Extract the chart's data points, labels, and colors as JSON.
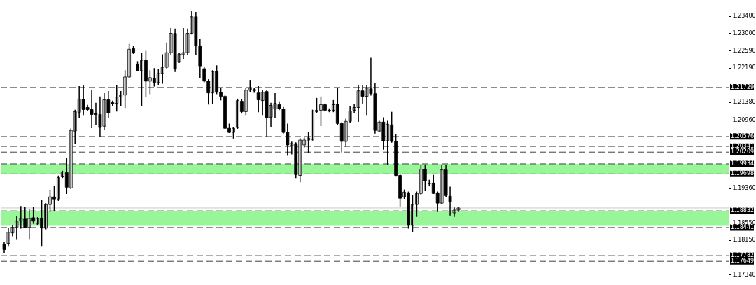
{
  "chart_data": {
    "type": "candlestick",
    "categories": [
      null,
      null,
      null,
      null,
      null,
      null,
      null,
      null,
      null,
      null,
      null,
      null,
      null,
      null,
      null,
      null,
      null,
      null,
      null,
      null,
      null,
      null,
      null,
      null,
      null,
      null,
      null,
      null,
      null,
      null,
      null,
      null,
      null,
      null,
      null,
      null,
      null,
      null,
      null,
      null,
      null,
      null,
      null,
      null,
      null,
      null,
      null,
      null,
      null,
      null,
      null,
      null,
      null,
      null,
      null,
      null,
      null,
      null,
      null,
      null,
      null,
      null,
      null,
      null,
      null,
      null,
      null,
      null,
      null,
      null,
      null,
      null,
      null,
      null,
      null,
      null,
      null,
      null,
      null,
      null,
      null,
      null,
      null,
      null,
      null,
      null,
      null,
      null,
      null,
      null,
      null,
      null,
      null,
      null,
      null,
      null,
      null,
      null,
      null,
      null,
      null,
      null,
      null,
      null,
      null,
      null,
      null,
      null,
      null,
      null,
      null,
      null,
      null,
      null,
      null,
      null,
      null,
      null,
      null,
      null,
      null,
      null,
      null,
      null,
      null,
      null,
      null,
      null,
      null,
      null,
      null,
      null,
      null,
      null,
      null,
      null,
      null,
      null,
      null,
      null,
      null,
      null,
      null,
      null,
      null,
      null,
      null,
      null,
      null,
      null,
      null,
      null,
      null,
      null,
      null,
      null,
      null,
      null,
      null,
      null,
      null,
      null,
      null,
      null,
      null,
      null,
      null,
      null,
      null,
      null,
      null,
      null,
      null,
      null
    ],
    "ohlc": [
      [
        1.18054,
        1.18086,
        1.17859,
        1.17924
      ],
      [
        1.1807,
        1.18411,
        1.18005,
        1.1833
      ],
      [
        1.18314,
        1.18492,
        1.18249,
        1.18444
      ],
      [
        1.18444,
        1.18704,
        1.18167,
        1.1859
      ],
      [
        1.1859,
        1.18931,
        1.18427,
        1.18655
      ],
      [
        1.18639,
        1.18915,
        1.18444,
        1.18444
      ],
      [
        1.18444,
        1.18866,
        1.18167,
        1.18655
      ],
      [
        1.18671,
        1.18915,
        1.18541,
        1.1859
      ],
      [
        1.18525,
        1.18671,
        1.18509,
        1.18655
      ],
      [
        1.18655,
        1.19077,
        1.18005,
        1.18427
      ],
      [
        1.18427,
        1.18996,
        1.18411,
        1.1898
      ],
      [
        1.1898,
        1.19305,
        1.18817,
        1.19159
      ],
      [
        1.19159,
        1.19402,
        1.18834,
        1.1911
      ],
      [
        1.1911,
        1.19646,
        1.19077,
        1.19614
      ],
      [
        1.1963,
        1.1976,
        1.19614,
        1.19744
      ],
      [
        1.19727,
        1.20052,
        1.1924,
        1.19386
      ],
      [
        1.1937,
        1.20751,
        1.19354,
        1.20719
      ],
      [
        1.20702,
        1.2119,
        1.2041,
        1.21157
      ],
      [
        1.21141,
        1.21742,
        1.21027,
        1.2145
      ],
      [
        1.2145,
        1.21759,
        1.21092,
        1.21206
      ],
      [
        1.21255,
        1.21304,
        1.2119,
        1.21206
      ],
      [
        1.21206,
        1.21661,
        1.20784,
        1.21092
      ],
      [
        1.21109,
        1.21352,
        1.20865,
        1.21092
      ],
      [
        1.21092,
        1.21499,
        1.20572,
        1.20784
      ],
      [
        1.20816,
        1.2158,
        1.20735,
        1.21434
      ],
      [
        1.21434,
        1.21629,
        1.21027,
        1.21125
      ],
      [
        1.21369,
        1.21401,
        1.21304,
        1.21336
      ],
      [
        1.21352,
        1.21759,
        1.21174,
        1.21499
      ],
      [
        1.21499,
        1.21629,
        1.21304,
        1.21547
      ],
      [
        1.21547,
        1.22116,
        1.21255,
        1.2197
      ],
      [
        1.2197,
        1.22734,
        1.21954,
        1.2262
      ],
      [
        1.22636,
        1.22685,
        1.22522,
        1.22539
      ],
      [
        1.22262,
        1.22327,
        1.22116,
        1.22116
      ],
      [
        1.22116,
        1.22522,
        1.21304,
        1.2236
      ],
      [
        1.2236,
        1.22571,
        1.21515,
        1.21872
      ],
      [
        1.21872,
        1.22116,
        1.2158,
        1.21954
      ],
      [
        1.21937,
        1.22165,
        1.21759,
        1.2184
      ],
      [
        1.2184,
        1.22149,
        1.21791,
        1.22051
      ],
      [
        1.22051,
        1.2249,
        1.21824,
        1.22197
      ],
      [
        1.22197,
        1.22766,
        1.22181,
        1.22539
      ],
      [
        1.22539,
        1.23107,
        1.22506,
        1.22994
      ],
      [
        1.22994,
        1.23091,
        1.221,
        1.22165
      ],
      [
        1.22327,
        1.22522,
        1.22311,
        1.22506
      ],
      [
        1.2249,
        1.23107,
        1.22409,
        1.22539
      ],
      [
        1.22539,
        1.23091,
        1.22506,
        1.22994
      ],
      [
        1.22994,
        1.23497,
        1.22977,
        1.23384
      ],
      [
        1.23384,
        1.23481,
        1.2249,
        1.22701
      ],
      [
        1.22701,
        1.22847,
        1.21954,
        1.2223
      ],
      [
        1.22165,
        1.22197,
        1.21856,
        1.21872
      ],
      [
        1.21872,
        1.21905,
        1.21336,
        1.21596
      ],
      [
        1.21596,
        1.22116,
        1.21352,
        1.221
      ],
      [
        1.221,
        1.2223,
        1.2158,
        1.21612
      ],
      [
        1.21612,
        1.2171,
        1.21434,
        1.21515
      ],
      [
        1.21515,
        1.21531,
        1.20767,
        1.20767
      ],
      [
        1.20767,
        1.20865,
        1.2067,
        1.2067
      ],
      [
        1.2067,
        1.20784,
        1.2054,
        1.20767
      ],
      [
        1.20784,
        1.2145,
        1.20767,
        1.21417
      ],
      [
        1.21401,
        1.21434,
        1.21125,
        1.21157
      ],
      [
        1.21157,
        1.2171,
        1.21092,
        1.21661
      ],
      [
        1.21661,
        1.21889,
        1.21629,
        1.2171
      ],
      [
        1.21645,
        1.21694,
        1.21612,
        1.21677
      ],
      [
        1.21596,
        1.21742,
        1.21157,
        1.21434
      ],
      [
        1.21417,
        1.21645,
        1.21092,
        1.21612
      ],
      [
        1.21629,
        1.21645,
        1.20572,
        1.21011
      ],
      [
        1.21027,
        1.21352,
        1.20816,
        1.21304
      ],
      [
        1.21222,
        1.2158,
        1.21027,
        1.21352
      ],
      [
        1.2132,
        1.21385,
        1.21206,
        1.21222
      ],
      [
        1.21222,
        1.21255,
        1.20654,
        1.2067
      ],
      [
        1.2067,
        1.20865,
        1.20134,
        1.20377
      ],
      [
        1.20361,
        1.20442,
        1.20166,
        1.2041
      ],
      [
        1.2041,
        1.20426,
        1.19614,
        1.19679
      ],
      [
        1.19662,
        1.20524,
        1.19516,
        1.20491
      ],
      [
        1.20377,
        1.2054,
        1.20329,
        1.20491
      ],
      [
        1.20491,
        1.2067,
        1.20199,
        1.2054
      ],
      [
        1.20507,
        1.2119,
        1.20491,
        1.21174
      ],
      [
        1.21157,
        1.21466,
        1.21141,
        1.2119
      ],
      [
        1.2119,
        1.21499,
        1.20832,
        1.2132
      ],
      [
        1.2132,
        1.21336,
        1.21174,
        1.2119
      ],
      [
        1.2119,
        1.21222,
        1.21157,
        1.21174
      ],
      [
        1.2119,
        1.21417,
        1.21157,
        1.2132
      ],
      [
        1.21336,
        1.21694,
        1.20865,
        1.20881
      ],
      [
        1.20881,
        1.20897,
        1.20215,
        1.20459
      ],
      [
        1.20459,
        1.20979,
        1.20345,
        1.2093
      ],
      [
        1.2093,
        1.21271,
        1.20914,
        1.21174
      ],
      [
        1.2119,
        1.2132,
        1.21141,
        1.21255
      ],
      [
        1.21255,
        1.21759,
        1.2093,
        1.21645
      ],
      [
        1.21645,
        1.21759,
        1.21352,
        1.21515
      ],
      [
        1.21515,
        1.21759,
        1.21092,
        1.2171
      ],
      [
        1.21694,
        1.22409,
        1.21547,
        1.2158
      ],
      [
        1.2158,
        1.21824,
        1.20654,
        1.20719
      ],
      [
        1.20702,
        1.2093,
        1.20686,
        1.20914
      ],
      [
        1.20914,
        1.21011,
        1.2028,
        1.20475
      ],
      [
        1.20475,
        1.2093,
        1.19922,
        1.20865
      ],
      [
        1.20849,
        1.21141,
        1.20442,
        1.20459
      ],
      [
        1.20459,
        1.20621,
        1.19646,
        1.19662
      ],
      [
        1.19662,
        1.19679,
        1.18947,
        1.19126
      ],
      [
        1.19159,
        1.19321,
        1.19126,
        1.19272
      ],
      [
        1.19256,
        1.19272,
        1.18427,
        1.18492
      ],
      [
        1.18492,
        1.19191,
        1.18346,
        1.1898
      ],
      [
        1.1898,
        1.19272,
        1.18704,
        1.1924
      ],
      [
        1.1924,
        1.19906,
        1.19224,
        1.19809
      ],
      [
        1.19809,
        1.19906,
        1.19305,
        1.19532
      ],
      [
        1.19484,
        1.19549,
        1.19419,
        1.19467
      ],
      [
        1.19484,
        1.19662,
        1.1924,
        1.1924
      ],
      [
        1.19256,
        1.19272,
        1.18817,
        1.19012
      ],
      [
        1.19012,
        1.1989,
        1.18996,
        1.19792
      ],
      [
        1.19792,
        1.1989,
        1.19159,
        1.19191
      ],
      [
        1.19175,
        1.19386,
        1.18736,
        1.19045
      ],
      [
        1.18785,
        1.18899,
        1.18704,
        1.1885
      ],
      [
        1.1885,
        1.18915,
        1.18817,
        1.18899
      ],
      null,
      null,
      null,
      null,
      null,
      null,
      null,
      null,
      null,
      null,
      null,
      null,
      null,
      null,
      null,
      null,
      null,
      null,
      null,
      null,
      null,
      null,
      null,
      null,
      null,
      null,
      null,
      null,
      null,
      null,
      null,
      null,
      null,
      null,
      null,
      null,
      null,
      null,
      null,
      null,
      null,
      null,
      null,
      null,
      null,
      null,
      null,
      null,
      null,
      null,
      null,
      null,
      null,
      null,
      null,
      null,
      null,
      null,
      null,
      null,
      null,
      null,
      null,
      null
    ],
    "ylim": [
      1.17127,
      1.23741
    ],
    "yticks": [
      {
        "value": 1.234,
        "label": "1.23400"
      },
      {
        "value": 1.23,
        "label": "1.23000"
      },
      {
        "value": 1.2259,
        "label": "1.22590"
      },
      {
        "value": 1.2219,
        "label": "1.22190"
      },
      {
        "value": 1.2138,
        "label": "1.21380"
      },
      {
        "value": 1.2096,
        "label": "1.20960"
      },
      {
        "value": 1.1936,
        "label": "1.19360"
      },
      {
        "value": 1.1855,
        "label": "1.18550"
      },
      {
        "value": 1.1815,
        "label": "1.18150"
      },
      {
        "value": 1.1734,
        "label": "1.17340"
      }
    ],
    "ref_lines": [
      {
        "axis": "y",
        "value": 1.21729,
        "label": "1.21729",
        "color": "#808080",
        "line_style": "dashed"
      },
      {
        "axis": "y",
        "value": 1.20576,
        "label": "1.20576",
        "color": "#606060",
        "line_style": "dashed"
      },
      {
        "axis": "y",
        "value": 1.20341,
        "label": "1.20341",
        "color": "#606060",
        "line_style": "dashed"
      },
      {
        "axis": "y",
        "value": 1.20209,
        "label": "1.20209",
        "color": "#404040",
        "line_style": "dashed"
      },
      {
        "axis": "y",
        "value": 1.19934,
        "label": "1.19934",
        "color": "#404040",
        "line_style": "dashed"
      },
      {
        "axis": "y",
        "value": 1.19698,
        "label": "1.19698",
        "color": "#404040",
        "line_style": "dashed"
      },
      {
        "axis": "y",
        "value": 1.18832,
        "label": "1.18832",
        "color": "#606060",
        "line_style": "dashed"
      },
      {
        "axis": "y",
        "value": 1.18441,
        "label": "1.18441",
        "color": "#404040",
        "line_style": "dashed"
      },
      {
        "axis": "y",
        "value": 1.17782,
        "label": "1.17782",
        "color": "#404040",
        "line_style": "dashed"
      },
      {
        "axis": "y",
        "value": 1.17649,
        "label": "1.17649",
        "color": "#404040",
        "line_style": "dashed"
      },
      {
        "axis": "y",
        "value": 1.189,
        "label": null,
        "color": "#c8c8c8",
        "line_style": "solid"
      }
    ],
    "bands": [
      {
        "axis": "y",
        "from": 1.19698,
        "to": 1.19934,
        "label": null,
        "color": "#98f598"
      },
      {
        "axis": "y",
        "from": 1.1848,
        "to": 1.18832,
        "label": null,
        "color": "#98f598"
      }
    ],
    "tick_labels": "y",
    "grid": false,
    "legend": false
  }
}
